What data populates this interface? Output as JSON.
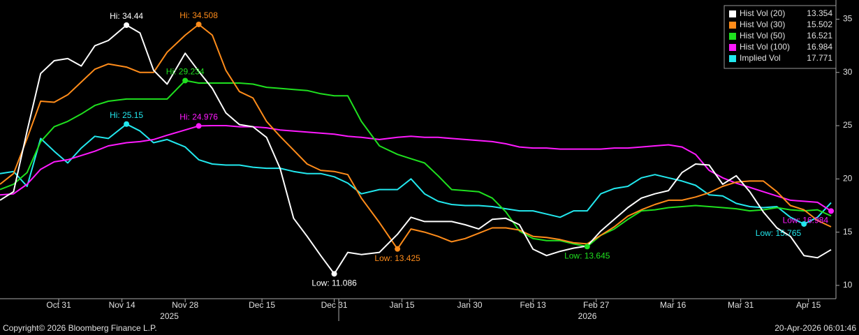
{
  "chart_data": {
    "type": "line",
    "x": [
      "2025-10-18",
      "2025-10-21",
      "2025-10-24",
      "2025-10-27",
      "2025-10-30",
      "2025-11-02",
      "2025-11-05",
      "2025-11-08",
      "2025-11-11",
      "2025-11-15",
      "2025-11-18",
      "2025-11-21",
      "2025-11-24",
      "2025-11-28",
      "2025-12-01",
      "2025-12-04",
      "2025-12-07",
      "2025-12-10",
      "2025-12-13",
      "2025-12-16",
      "2025-12-19",
      "2025-12-22",
      "2025-12-25",
      "2025-12-28",
      "2025-12-31",
      "2026-01-03",
      "2026-01-06",
      "2026-01-10",
      "2026-01-14",
      "2026-01-17",
      "2026-01-20",
      "2026-01-23",
      "2026-01-26",
      "2026-01-29",
      "2026-02-01",
      "2026-02-04",
      "2026-02-07",
      "2026-02-10",
      "2026-02-13",
      "2026-02-16",
      "2026-02-19",
      "2026-02-22",
      "2026-02-25",
      "2026-02-28",
      "2026-03-03",
      "2026-03-06",
      "2026-03-09",
      "2026-03-12",
      "2026-03-15",
      "2026-03-18",
      "2026-03-21",
      "2026-03-24",
      "2026-03-27",
      "2026-03-30",
      "2026-04-02",
      "2026-04-05",
      "2026-04-08",
      "2026-04-11",
      "2026-04-14",
      "2026-04-17",
      "2026-04-20"
    ],
    "series": [
      {
        "name": "Hist Vol (20)",
        "color": "#ffffff",
        "values": [
          18,
          18.8,
          24.5,
          29.9,
          31.1,
          31.3,
          30.6,
          32.5,
          33,
          34.44,
          33.7,
          30.2,
          28.9,
          31.8,
          30.1,
          28.5,
          26.2,
          25.1,
          24.9,
          23.9,
          21,
          16.3,
          14.6,
          12.8,
          11.086,
          13.1,
          12.9,
          13.1,
          14.8,
          16.4,
          16,
          16,
          16,
          15.7,
          15.3,
          16.2,
          16.3,
          15.7,
          13.4,
          12.8,
          13.2,
          13.5,
          13.7,
          15.1,
          16.2,
          17.3,
          18.2,
          18.6,
          18.9,
          20.6,
          21.4,
          21.3,
          19.5,
          20.3,
          18.8,
          16.9,
          15.4,
          14.6,
          12.8,
          12.6,
          13.354
        ]
      },
      {
        "name": "Hist Vol (30)",
        "color": "#ff8c1a",
        "values": [
          19.5,
          20.5,
          23.8,
          27.3,
          27.2,
          27.9,
          29.1,
          30.3,
          30.8,
          30.5,
          30,
          30,
          31.9,
          33.5,
          34.508,
          33.5,
          30.2,
          28.2,
          27.6,
          25.4,
          24,
          22.7,
          21.4,
          20.8,
          20.7,
          20.4,
          18.2,
          15.9,
          13.425,
          15.3,
          15,
          14.6,
          14.1,
          14.4,
          14.9,
          15.4,
          15.4,
          15.2,
          14.6,
          14.5,
          14.3,
          14,
          13.9,
          14.7,
          15.5,
          16.5,
          17.1,
          17.6,
          18,
          18,
          18.3,
          18.7,
          19.3,
          19.7,
          19.8,
          19.8,
          18.8,
          17.5,
          17.1,
          16.1,
          15.502
        ]
      },
      {
        "name": "Hist Vol (50)",
        "color": "#1fe01f",
        "values": [
          19,
          19.5,
          20.6,
          23.5,
          24.9,
          25.4,
          26.1,
          26.9,
          27.3,
          27.5,
          27.5,
          27.5,
          27.5,
          29.234,
          29,
          29,
          29,
          29,
          28.9,
          28.6,
          28.5,
          28.4,
          28.3,
          28,
          27.8,
          27.8,
          25.4,
          23.1,
          22.3,
          21.9,
          21.5,
          20.3,
          19,
          18.9,
          18.8,
          18.2,
          16.9,
          15.1,
          14.4,
          14.2,
          14.2,
          13.9,
          13.645,
          14.7,
          15.3,
          16.2,
          17,
          17.1,
          17.3,
          17.4,
          17.5,
          17.4,
          17.3,
          17.2,
          17,
          17.1,
          17.3,
          17.1,
          17,
          17.1,
          16.521
        ]
      },
      {
        "name": "Hist Vol (100)",
        "color": "#ff1aff",
        "values": [
          18.5,
          18.6,
          19.5,
          20.9,
          21.6,
          21.8,
          22.2,
          22.6,
          23.1,
          23.4,
          23.5,
          23.7,
          24.1,
          24.6,
          24.976,
          25,
          25,
          24.9,
          24.9,
          24.8,
          24.6,
          24.5,
          24.4,
          24.3,
          24.2,
          24,
          23.9,
          23.7,
          23.9,
          24,
          23.9,
          23.9,
          23.8,
          23.7,
          23.6,
          23.5,
          23.3,
          23,
          22.9,
          22.9,
          22.8,
          22.8,
          22.8,
          22.8,
          22.9,
          22.9,
          23,
          23.1,
          23.2,
          23,
          22.3,
          20.8,
          20.1,
          19.6,
          19.2,
          18.8,
          18.4,
          18,
          17.9,
          17.8,
          16.984
        ]
      },
      {
        "name": "Implied Vol",
        "color": "#22e8ee",
        "values": [
          20.5,
          20.7,
          19.3,
          23.8,
          22.6,
          21.5,
          22.9,
          24,
          23.8,
          25.15,
          24.5,
          23.4,
          23.7,
          23,
          21.8,
          21.4,
          21.3,
          21.3,
          21.1,
          21,
          21,
          20.7,
          20.5,
          20.5,
          20.2,
          19.6,
          18.6,
          19,
          19,
          20,
          18.6,
          17.9,
          17.6,
          17.5,
          17.5,
          17.4,
          17.2,
          17,
          17,
          16.7,
          16.4,
          17,
          17,
          18.6,
          19.1,
          19.3,
          20.1,
          20.4,
          20.1,
          19.8,
          19.4,
          18.5,
          18.4,
          17.7,
          17.4,
          17.3,
          17.4,
          16.4,
          15.765,
          16.4,
          17.771
        ]
      }
    ],
    "xlim": [
      "2025-10-18",
      "2026-04-20"
    ],
    "xticks": [
      {
        "value": "2025-10-31",
        "label": "Oct 31"
      },
      {
        "value": "2025-11-14",
        "label": "Nov 14"
      },
      {
        "value": "2025-11-28",
        "label": "Nov 28"
      },
      {
        "value": "2025-12-15",
        "label": "Dec 15"
      },
      {
        "value": "2025-12-31",
        "label": "Dec 31"
      },
      {
        "value": "2026-01-15",
        "label": "Jan 15"
      },
      {
        "value": "2026-01-30",
        "label": "Jan 30"
      },
      {
        "value": "2026-02-13",
        "label": "Feb 13"
      },
      {
        "value": "2026-02-27",
        "label": "Feb 27"
      },
      {
        "value": "2026-03-16",
        "label": "Mar 16"
      },
      {
        "value": "2026-03-31",
        "label": "Mar 31"
      },
      {
        "value": "2026-04-15",
        "label": "Apr 15"
      }
    ],
    "years": [
      "2025",
      "2026"
    ],
    "ylim": [
      8.75,
      36.8
    ],
    "yticks": [
      10,
      15,
      20,
      25,
      30,
      35
    ],
    "legend": "upper right",
    "annotations": [
      {
        "text": "Hi: 34.44",
        "x": "2025-11-15",
        "y": 34.44,
        "color": "#ffffff"
      },
      {
        "text": "Hi: 34.508",
        "x": "2025-12-01",
        "y": 34.508,
        "color": "#ff8c1a"
      },
      {
        "text": "Hi: 29.234",
        "x": "2025-11-28",
        "y": 29.234,
        "color": "#1fe01f"
      },
      {
        "text": "Hi: 25.15",
        "x": "2025-11-15",
        "y": 25.15,
        "color": "#22e8ee"
      },
      {
        "text": "Hi: 24.976",
        "x": "2025-12-01",
        "y": 24.976,
        "color": "#ff1aff"
      },
      {
        "text": "Low: 11.086",
        "x": "2025-12-31",
        "y": 11.086,
        "color": "#ffffff"
      },
      {
        "text": "Low: 13.425",
        "x": "2026-01-14",
        "y": 13.425,
        "color": "#ff8c1a"
      },
      {
        "text": "Low: 13.645",
        "x": "2026-02-25",
        "y": 13.645,
        "color": "#1fe01f"
      },
      {
        "text": "Low: 16.984",
        "x": "2026-04-20",
        "y": 16.984,
        "color": "#ff1aff"
      },
      {
        "text": "Low: 15.765",
        "x": "2026-04-14",
        "y": 15.765,
        "color": "#22e8ee"
      }
    ],
    "footer_left": "Copyright© 2026 Bloomberg Finance L.P.",
    "footer_right": "20-Apr-2026 06:01:46"
  }
}
